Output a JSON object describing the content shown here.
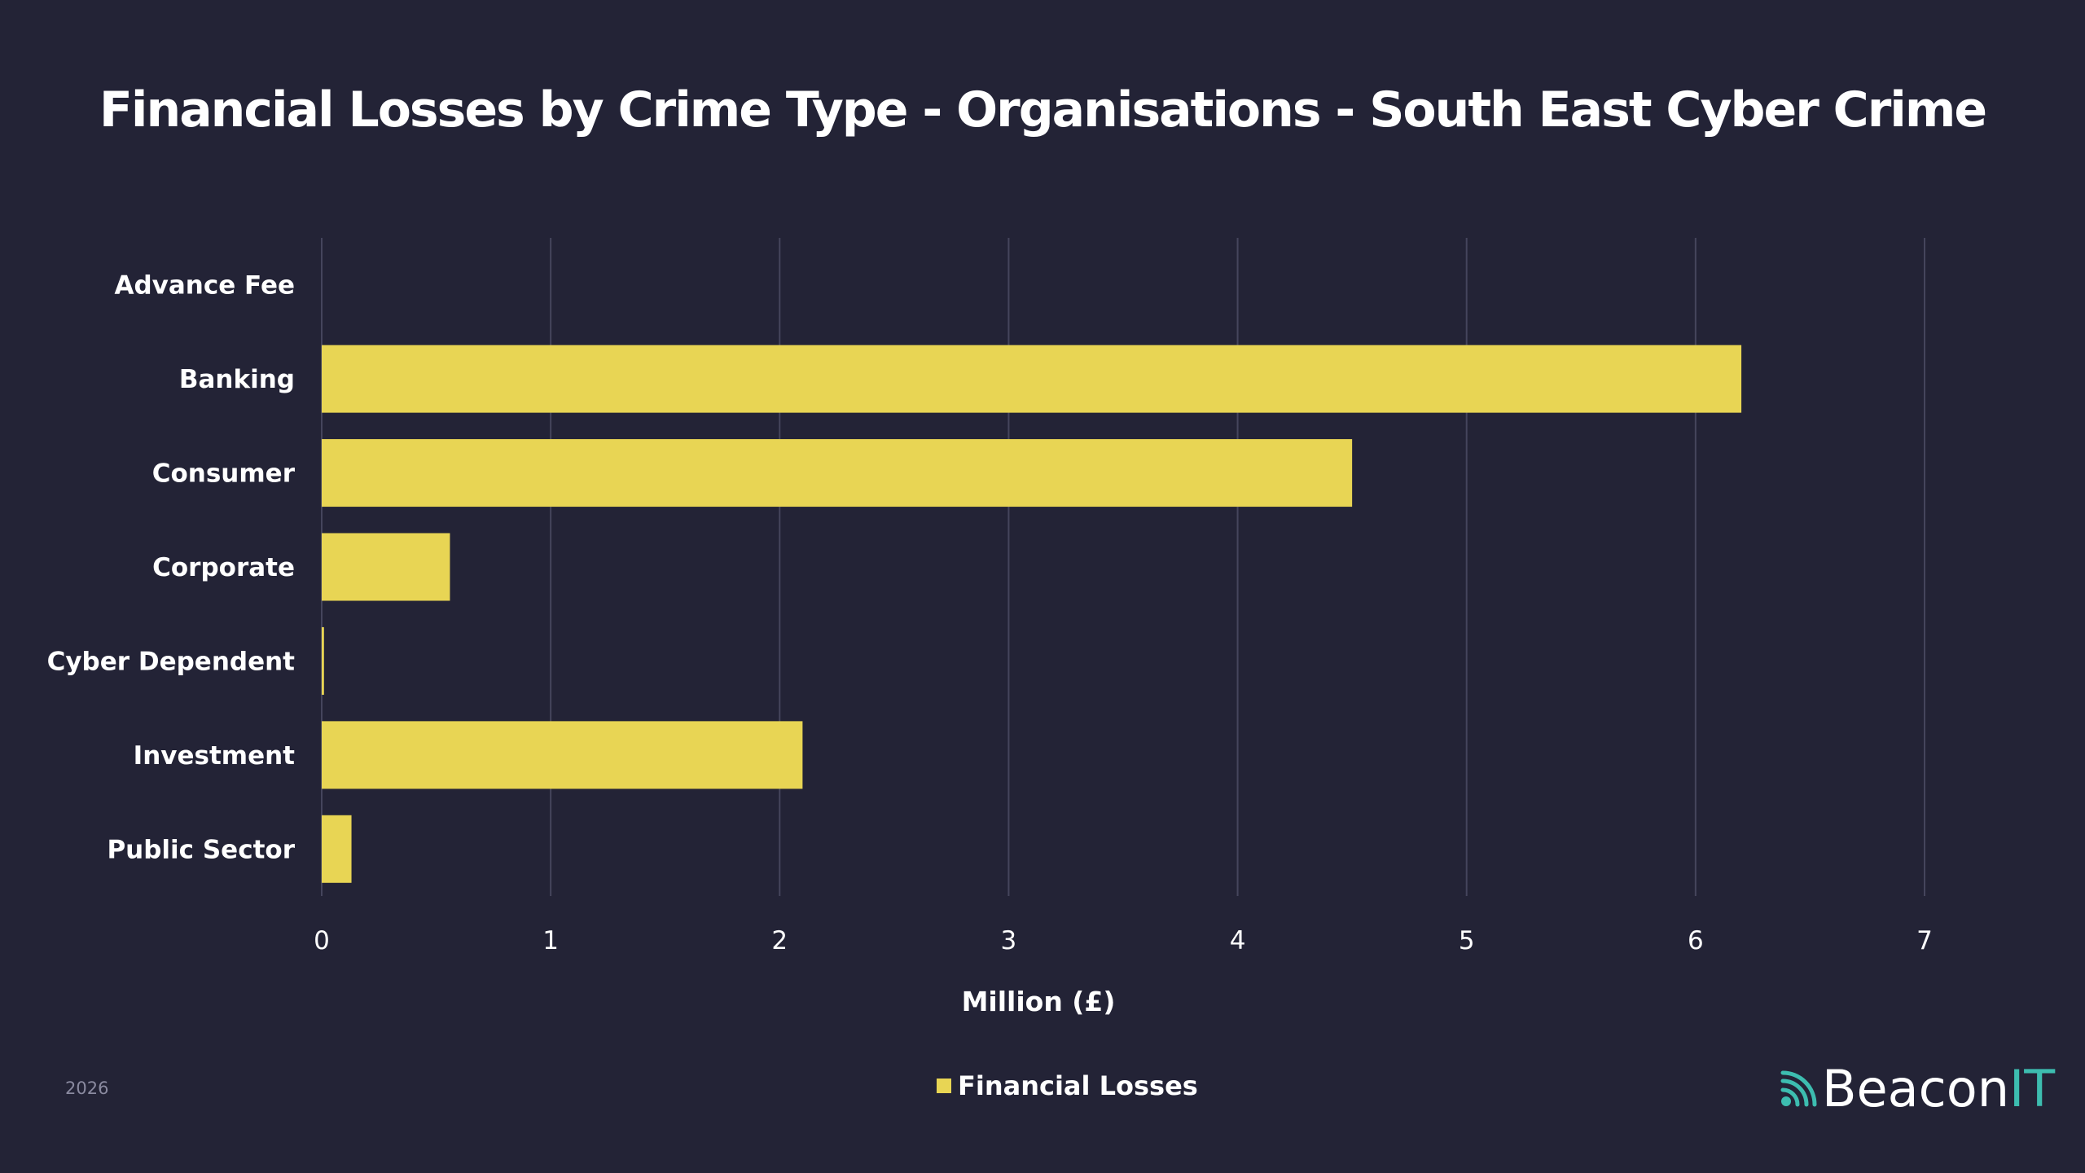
{
  "chart_data": {
    "type": "bar",
    "orientation": "horizontal",
    "title": "Financial Losses by Crime Type - Organisations - South East Cyber Crime",
    "xlabel": "Million (£)",
    "ylabel": "",
    "categories": [
      "Advance Fee",
      "Banking",
      "Consumer",
      "Corporate",
      "Cyber Dependent",
      "Investment",
      "Public Sector"
    ],
    "series": [
      {
        "name": "Financial Losses",
        "values": [
          0,
          6.2,
          4.5,
          0.56,
          0.01,
          2.1,
          0.13
        ],
        "color": "#e8d554"
      }
    ],
    "xlim": [
      0,
      7
    ],
    "xticks": [
      "0",
      "1",
      "2",
      "3",
      "4",
      "5",
      "6",
      "7"
    ],
    "grid": "vertical",
    "legend": "bottom"
  },
  "footer": {
    "year": "2026",
    "logo_main": "Beacon",
    "logo_accent": "IT",
    "accent_color": "#3dbdb0"
  },
  "colors": {
    "background": "#232336",
    "grid": "#45455c"
  }
}
